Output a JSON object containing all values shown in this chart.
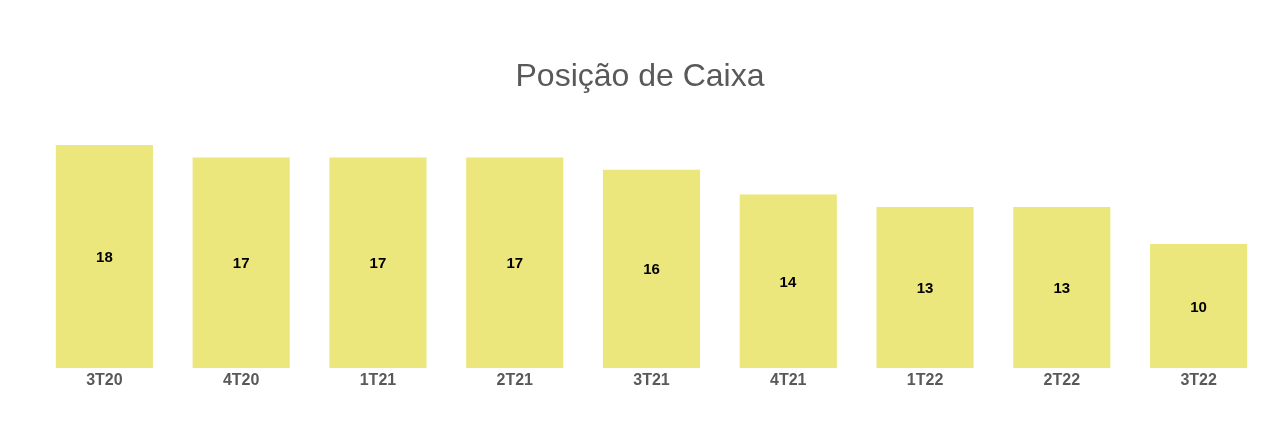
{
  "chart_data": {
    "type": "bar",
    "title": "Posição de Caixa",
    "categories": [
      "3T20",
      "4T20",
      "1T21",
      "2T21",
      "3T21",
      "4T21",
      "1T22",
      "2T22",
      "3T22"
    ],
    "values": [
      18,
      17,
      17,
      17,
      16,
      14,
      13,
      13,
      10
    ],
    "color": "#ece77d",
    "data_labels": true
  }
}
